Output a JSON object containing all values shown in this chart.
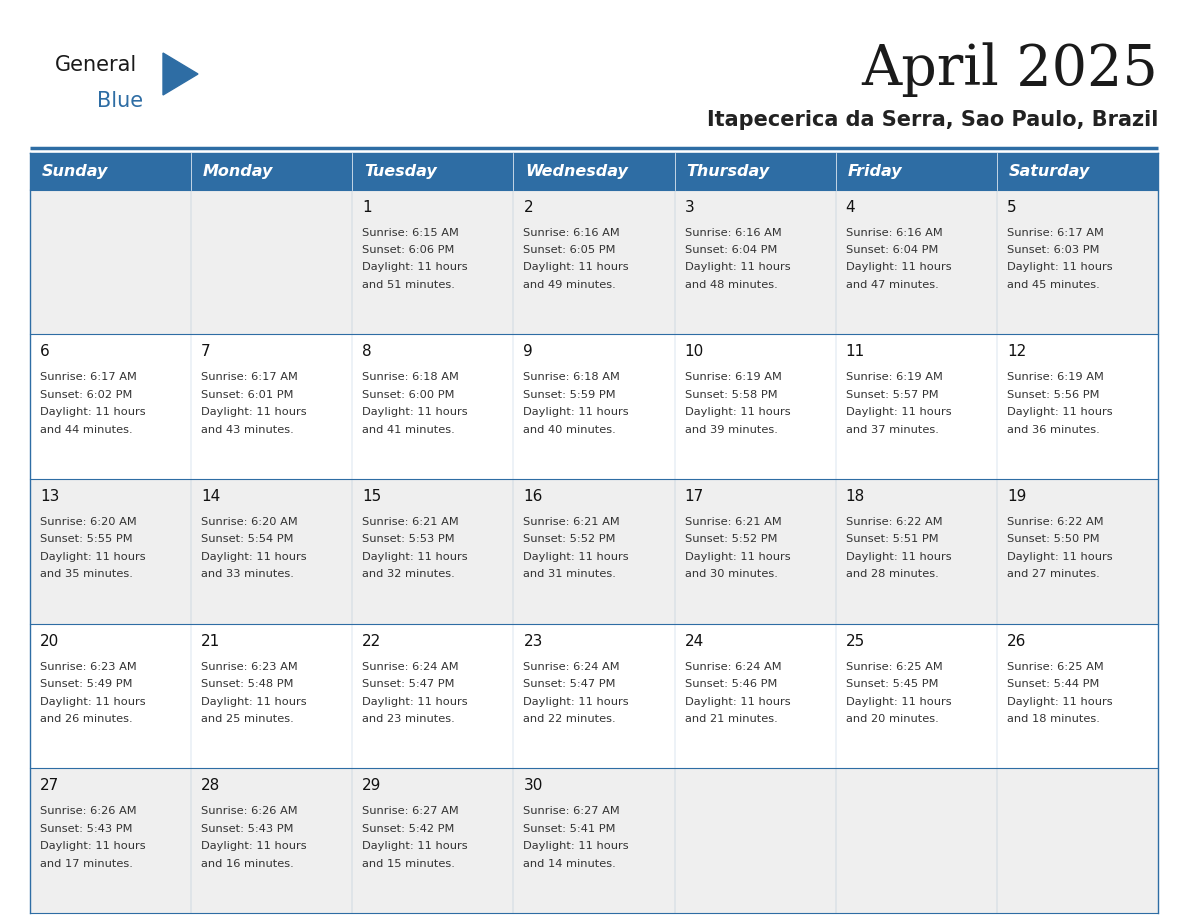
{
  "title": "April 2025",
  "subtitle": "Itapecerica da Serra, Sao Paulo, Brazil",
  "header_bg": "#2E6DA4",
  "header_text_color": "#FFFFFF",
  "row_bg_odd": "#EFEFEF",
  "row_bg_even": "#FFFFFF",
  "border_color": "#2E6DA4",
  "day_headers": [
    "Sunday",
    "Monday",
    "Tuesday",
    "Wednesday",
    "Thursday",
    "Friday",
    "Saturday"
  ],
  "title_color": "#1a1a1a",
  "subtitle_color": "#222222",
  "cell_text_color": "#333333",
  "day_num_color": "#111111",
  "logo_general_color": "#1a1a1a",
  "logo_blue_color": "#2E6DA4",
  "weeks": [
    {
      "days": [
        {
          "date": "",
          "sunrise": "",
          "sunset": "",
          "daylight": ""
        },
        {
          "date": "",
          "sunrise": "",
          "sunset": "",
          "daylight": ""
        },
        {
          "date": "1",
          "sunrise": "6:15 AM",
          "sunset": "6:06 PM",
          "daylight": "11 hours and 51 minutes."
        },
        {
          "date": "2",
          "sunrise": "6:16 AM",
          "sunset": "6:05 PM",
          "daylight": "11 hours and 49 minutes."
        },
        {
          "date": "3",
          "sunrise": "6:16 AM",
          "sunset": "6:04 PM",
          "daylight": "11 hours and 48 minutes."
        },
        {
          "date": "4",
          "sunrise": "6:16 AM",
          "sunset": "6:04 PM",
          "daylight": "11 hours and 47 minutes."
        },
        {
          "date": "5",
          "sunrise": "6:17 AM",
          "sunset": "6:03 PM",
          "daylight": "11 hours and 45 minutes."
        }
      ]
    },
    {
      "days": [
        {
          "date": "6",
          "sunrise": "6:17 AM",
          "sunset": "6:02 PM",
          "daylight": "11 hours and 44 minutes."
        },
        {
          "date": "7",
          "sunrise": "6:17 AM",
          "sunset": "6:01 PM",
          "daylight": "11 hours and 43 minutes."
        },
        {
          "date": "8",
          "sunrise": "6:18 AM",
          "sunset": "6:00 PM",
          "daylight": "11 hours and 41 minutes."
        },
        {
          "date": "9",
          "sunrise": "6:18 AM",
          "sunset": "5:59 PM",
          "daylight": "11 hours and 40 minutes."
        },
        {
          "date": "10",
          "sunrise": "6:19 AM",
          "sunset": "5:58 PM",
          "daylight": "11 hours and 39 minutes."
        },
        {
          "date": "11",
          "sunrise": "6:19 AM",
          "sunset": "5:57 PM",
          "daylight": "11 hours and 37 minutes."
        },
        {
          "date": "12",
          "sunrise": "6:19 AM",
          "sunset": "5:56 PM",
          "daylight": "11 hours and 36 minutes."
        }
      ]
    },
    {
      "days": [
        {
          "date": "13",
          "sunrise": "6:20 AM",
          "sunset": "5:55 PM",
          "daylight": "11 hours and 35 minutes."
        },
        {
          "date": "14",
          "sunrise": "6:20 AM",
          "sunset": "5:54 PM",
          "daylight": "11 hours and 33 minutes."
        },
        {
          "date": "15",
          "sunrise": "6:21 AM",
          "sunset": "5:53 PM",
          "daylight": "11 hours and 32 minutes."
        },
        {
          "date": "16",
          "sunrise": "6:21 AM",
          "sunset": "5:52 PM",
          "daylight": "11 hours and 31 minutes."
        },
        {
          "date": "17",
          "sunrise": "6:21 AM",
          "sunset": "5:52 PM",
          "daylight": "11 hours and 30 minutes."
        },
        {
          "date": "18",
          "sunrise": "6:22 AM",
          "sunset": "5:51 PM",
          "daylight": "11 hours and 28 minutes."
        },
        {
          "date": "19",
          "sunrise": "6:22 AM",
          "sunset": "5:50 PM",
          "daylight": "11 hours and 27 minutes."
        }
      ]
    },
    {
      "days": [
        {
          "date": "20",
          "sunrise": "6:23 AM",
          "sunset": "5:49 PM",
          "daylight": "11 hours and 26 minutes."
        },
        {
          "date": "21",
          "sunrise": "6:23 AM",
          "sunset": "5:48 PM",
          "daylight": "11 hours and 25 minutes."
        },
        {
          "date": "22",
          "sunrise": "6:24 AM",
          "sunset": "5:47 PM",
          "daylight": "11 hours and 23 minutes."
        },
        {
          "date": "23",
          "sunrise": "6:24 AM",
          "sunset": "5:47 PM",
          "daylight": "11 hours and 22 minutes."
        },
        {
          "date": "24",
          "sunrise": "6:24 AM",
          "sunset": "5:46 PM",
          "daylight": "11 hours and 21 minutes."
        },
        {
          "date": "25",
          "sunrise": "6:25 AM",
          "sunset": "5:45 PM",
          "daylight": "11 hours and 20 minutes."
        },
        {
          "date": "26",
          "sunrise": "6:25 AM",
          "sunset": "5:44 PM",
          "daylight": "11 hours and 18 minutes."
        }
      ]
    },
    {
      "days": [
        {
          "date": "27",
          "sunrise": "6:26 AM",
          "sunset": "5:43 PM",
          "daylight": "11 hours and 17 minutes."
        },
        {
          "date": "28",
          "sunrise": "6:26 AM",
          "sunset": "5:43 PM",
          "daylight": "11 hours and 16 minutes."
        },
        {
          "date": "29",
          "sunrise": "6:27 AM",
          "sunset": "5:42 PM",
          "daylight": "11 hours and 15 minutes."
        },
        {
          "date": "30",
          "sunrise": "6:27 AM",
          "sunset": "5:41 PM",
          "daylight": "11 hours and 14 minutes."
        },
        {
          "date": "",
          "sunrise": "",
          "sunset": "",
          "daylight": ""
        },
        {
          "date": "",
          "sunrise": "",
          "sunset": "",
          "daylight": ""
        },
        {
          "date": "",
          "sunrise": "",
          "sunset": "",
          "daylight": ""
        }
      ]
    }
  ]
}
